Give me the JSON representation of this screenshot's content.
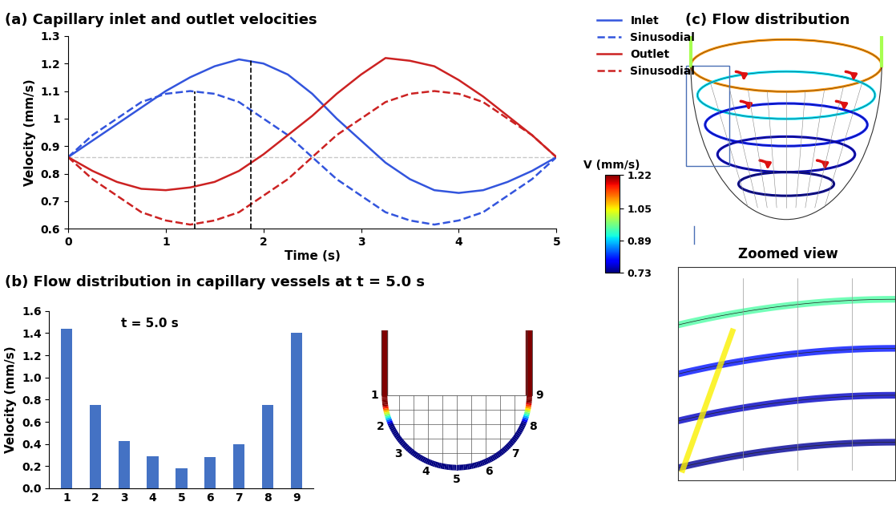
{
  "chart_data": [
    {
      "type": "line",
      "title": "(a) Capillary inlet and outlet velocities",
      "x_label": "Time (s)",
      "y_label": "Velocity (mm/s)",
      "x": [
        0,
        0.25,
        0.5,
        0.75,
        1.0,
        1.25,
        1.5,
        1.75,
        2.0,
        2.25,
        2.5,
        2.75,
        3.0,
        3.25,
        3.5,
        3.75,
        4.0,
        4.25,
        4.5,
        4.75,
        5.0
      ],
      "series": [
        {
          "name": "Inlet",
          "color": "#3355dd",
          "line_style": "solid",
          "values": [
            0.86,
            0.92,
            0.98,
            1.04,
            1.1,
            1.15,
            1.19,
            1.215,
            1.2,
            1.16,
            1.09,
            1.0,
            0.92,
            0.84,
            0.78,
            0.74,
            0.73,
            0.74,
            0.77,
            0.81,
            0.86
          ]
        },
        {
          "name": "Sinusodial",
          "color": "#3355dd",
          "line_style": "dashed",
          "values": [
            0.86,
            0.94,
            1.0,
            1.06,
            1.09,
            1.1,
            1.09,
            1.06,
            1.0,
            0.94,
            0.86,
            0.78,
            0.72,
            0.66,
            0.63,
            0.615,
            0.63,
            0.66,
            0.72,
            0.78,
            0.86
          ]
        },
        {
          "name": "Outlet",
          "color": "#cc2222",
          "line_style": "solid",
          "values": [
            0.86,
            0.81,
            0.77,
            0.745,
            0.74,
            0.75,
            0.77,
            0.81,
            0.87,
            0.94,
            1.01,
            1.09,
            1.16,
            1.22,
            1.21,
            1.19,
            1.14,
            1.08,
            1.01,
            0.94,
            0.86
          ]
        },
        {
          "name": "Sinusodial",
          "color": "#cc2222",
          "line_style": "dashed",
          "values": [
            0.86,
            0.78,
            0.72,
            0.66,
            0.63,
            0.615,
            0.63,
            0.66,
            0.72,
            0.78,
            0.86,
            0.94,
            1.0,
            1.06,
            1.09,
            1.1,
            1.09,
            1.06,
            1.0,
            0.94,
            0.86
          ]
        }
      ],
      "vertical_lines": [
        {
          "x": 1.3,
          "top": 1.1
        },
        {
          "x": 1.87,
          "top": 1.215
        }
      ],
      "baseline": 0.86,
      "xlim": [
        0,
        5
      ],
      "xticks": [
        0,
        1,
        2,
        3,
        4,
        5
      ],
      "ylim": [
        0.6,
        1.3
      ],
      "yticks": [
        0.6,
        0.7,
        0.8,
        0.9,
        1,
        1.1,
        1.2,
        1.3
      ],
      "grid": false,
      "legend": "upper left"
    },
    {
      "type": "bar",
      "title": "(b) Flow distribution in capillary vessels at t = 5.0 s",
      "annotation": "t = 5.0 s",
      "y_label": "Velocity (mm/s)",
      "categories": [
        "1",
        "2",
        "3",
        "4",
        "5",
        "6",
        "7",
        "8",
        "9"
      ],
      "values": [
        1.44,
        0.75,
        0.43,
        0.29,
        0.18,
        0.28,
        0.4,
        0.75,
        1.4
      ],
      "color": "#4472c4",
      "ylim": [
        0,
        1.6
      ],
      "yticks": [
        {
          "value": 0,
          "label": "0.0"
        },
        0.2,
        0.4,
        0.6,
        0.8,
        {
          "value": 1,
          "label": "1.0"
        },
        1.2,
        1.4,
        1.6
      ],
      "grid": false
    }
  ],
  "schematic_b": {
    "labels": [
      "1",
      "2",
      "3",
      "4",
      "5",
      "6",
      "7",
      "8",
      "9"
    ]
  },
  "colorbar": {
    "title": "V (mm/s)",
    "range": [
      0.73,
      1.22
    ],
    "ticks": [
      0.73,
      0.89,
      1.05,
      1.22
    ]
  },
  "panel_c": {
    "title": "(c) Flow distribution",
    "zoom_title": "Zoomed view"
  }
}
